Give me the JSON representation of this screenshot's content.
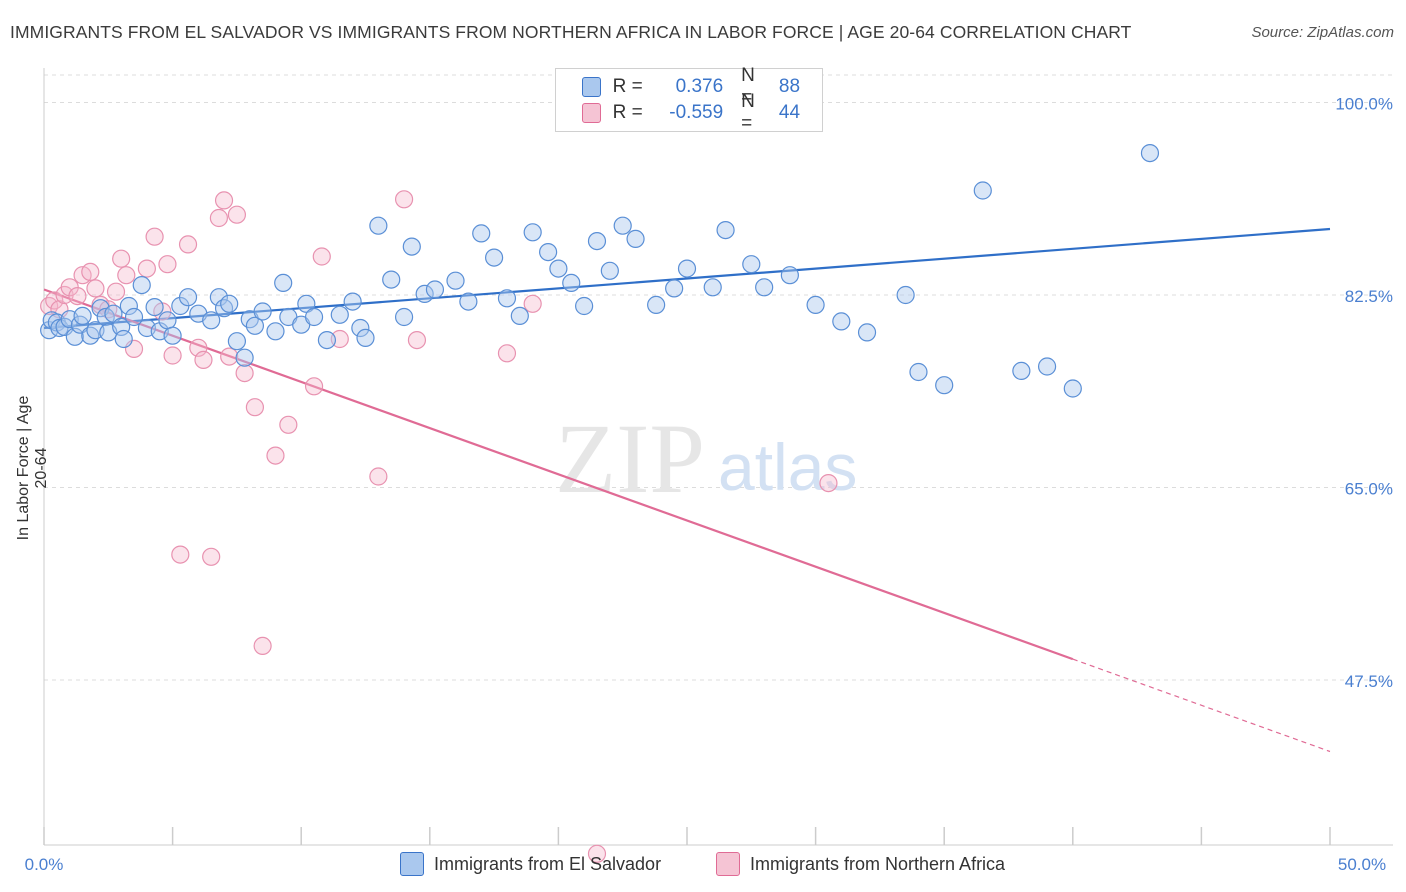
{
  "header": {
    "title": "IMMIGRANTS FROM EL SALVADOR VS IMMIGRANTS FROM NORTHERN AFRICA IN LABOR FORCE | AGE 20-64 CORRELATION CHART",
    "source": "Source: ZipAtlas.com"
  },
  "legend": {
    "rows": [
      {
        "r_label": "R =",
        "r_value": "0.376",
        "n_label": "N =",
        "n_value": "88"
      },
      {
        "r_label": "R =",
        "r_value": "-0.559",
        "n_label": "N =",
        "n_value": "44"
      }
    ]
  },
  "watermark": {
    "zip": "ZIP",
    "atlas": "atlas"
  },
  "colors": {
    "blue": "#3a74c9",
    "blue_fill": "#aac8ee",
    "pink": "#e06b95",
    "pink_fill": "#f5b8cc",
    "grid": "#dcdcdc",
    "tick_label": "#4a7fd0"
  },
  "chart_data": {
    "type": "scatter",
    "title": "IMMIGRANTS FROM EL SALVADOR VS IMMIGRANTS FROM NORTHERN AFRICA IN LABOR FORCE | AGE 20-64 CORRELATION CHART",
    "xlabel": "",
    "ylabel": "In Labor Force | Age 20-64",
    "xlim": [
      0,
      50
    ],
    "ylim": [
      32.5,
      102.5
    ],
    "x_tick_labels": [
      "0.0%",
      "50.0%"
    ],
    "y_ticks": [
      47.5,
      65.0,
      82.5,
      100.0
    ],
    "y_tick_labels": [
      "47.5%",
      "65.0%",
      "82.5%",
      "100.0%"
    ],
    "grid": true,
    "legend_position": "top-center",
    "series": [
      {
        "name": "Immigrants from El Salvador",
        "color": "#3a74c9",
        "trend": {
          "x": [
            0,
            50
          ],
          "y": [
            79.5,
            88.5
          ]
        },
        "points": [
          [
            0.2,
            79.3
          ],
          [
            0.3,
            80.2
          ],
          [
            0.5,
            80.0
          ],
          [
            0.6,
            79.5
          ],
          [
            0.8,
            79.6
          ],
          [
            1.0,
            80.3
          ],
          [
            1.2,
            78.7
          ],
          [
            1.4,
            79.8
          ],
          [
            1.5,
            80.6
          ],
          [
            1.8,
            78.8
          ],
          [
            2.0,
            79.3
          ],
          [
            2.2,
            81.3
          ],
          [
            2.4,
            80.5
          ],
          [
            2.5,
            79.1
          ],
          [
            2.7,
            80.8
          ],
          [
            3.0,
            79.6
          ],
          [
            3.1,
            78.5
          ],
          [
            3.3,
            81.5
          ],
          [
            3.5,
            80.5
          ],
          [
            3.8,
            83.4
          ],
          [
            4.0,
            79.5
          ],
          [
            4.3,
            81.4
          ],
          [
            4.5,
            79.2
          ],
          [
            4.8,
            80.2
          ],
          [
            5.0,
            78.8
          ],
          [
            5.3,
            81.5
          ],
          [
            5.6,
            82.3
          ],
          [
            6.0,
            80.8
          ],
          [
            6.5,
            80.2
          ],
          [
            6.8,
            82.3
          ],
          [
            7.0,
            81.3
          ],
          [
            7.2,
            81.7
          ],
          [
            7.5,
            78.3
          ],
          [
            7.8,
            76.8
          ],
          [
            8.0,
            80.3
          ],
          [
            8.2,
            79.7
          ],
          [
            8.5,
            81.0
          ],
          [
            9.0,
            79.2
          ],
          [
            9.3,
            83.6
          ],
          [
            9.5,
            80.5
          ],
          [
            10.0,
            79.8
          ],
          [
            10.2,
            81.7
          ],
          [
            10.5,
            80.5
          ],
          [
            11.0,
            78.4
          ],
          [
            11.5,
            80.7
          ],
          [
            12.0,
            81.9
          ],
          [
            12.3,
            79.5
          ],
          [
            12.5,
            78.6
          ],
          [
            13.0,
            88.8
          ],
          [
            13.5,
            83.9
          ],
          [
            14.0,
            80.5
          ],
          [
            14.3,
            86.9
          ],
          [
            14.8,
            82.6
          ],
          [
            15.2,
            83.0
          ],
          [
            16.0,
            83.8
          ],
          [
            16.5,
            81.9
          ],
          [
            17.0,
            88.1
          ],
          [
            17.5,
            85.9
          ],
          [
            18.0,
            82.2
          ],
          [
            18.5,
            80.6
          ],
          [
            19.0,
            88.2
          ],
          [
            19.6,
            86.4
          ],
          [
            20.0,
            84.9
          ],
          [
            20.5,
            83.6
          ],
          [
            21.0,
            81.5
          ],
          [
            21.5,
            87.4
          ],
          [
            22.0,
            84.7
          ],
          [
            22.5,
            88.8
          ],
          [
            23.0,
            87.6
          ],
          [
            23.8,
            81.6
          ],
          [
            24.5,
            83.1
          ],
          [
            25.0,
            84.9
          ],
          [
            26.0,
            83.2
          ],
          [
            26.5,
            88.4
          ],
          [
            27.5,
            85.3
          ],
          [
            28.0,
            83.2
          ],
          [
            29.0,
            84.3
          ],
          [
            30.0,
            81.6
          ],
          [
            31.0,
            80.1
          ],
          [
            32.0,
            79.1
          ],
          [
            33.5,
            82.5
          ],
          [
            34.0,
            75.5
          ],
          [
            35.0,
            74.3
          ],
          [
            36.5,
            92.0
          ],
          [
            38.0,
            75.6
          ],
          [
            39.0,
            76.0
          ],
          [
            40.0,
            74.0
          ],
          [
            43.0,
            95.4
          ]
        ]
      },
      {
        "name": "Immigrants from Northern Africa",
        "color": "#e06b95",
        "trend": {
          "x": [
            0,
            50
          ],
          "y": [
            83.0,
            41.0
          ]
        },
        "points": [
          [
            0.2,
            81.5
          ],
          [
            0.4,
            82.0
          ],
          [
            0.6,
            81.2
          ],
          [
            0.8,
            82.5
          ],
          [
            1.0,
            83.2
          ],
          [
            1.3,
            82.4
          ],
          [
            1.5,
            84.3
          ],
          [
            1.8,
            84.6
          ],
          [
            2.0,
            83.1
          ],
          [
            2.2,
            81.6
          ],
          [
            2.5,
            81.2
          ],
          [
            2.8,
            82.8
          ],
          [
            3.0,
            85.8
          ],
          [
            3.2,
            84.3
          ],
          [
            3.5,
            77.6
          ],
          [
            4.0,
            84.9
          ],
          [
            4.3,
            87.8
          ],
          [
            4.6,
            81.0
          ],
          [
            4.8,
            85.3
          ],
          [
            5.0,
            77.0
          ],
          [
            5.3,
            58.9
          ],
          [
            5.6,
            87.1
          ],
          [
            6.0,
            77.7
          ],
          [
            6.2,
            76.6
          ],
          [
            6.5,
            58.7
          ],
          [
            6.8,
            89.5
          ],
          [
            7.0,
            91.1
          ],
          [
            7.2,
            76.9
          ],
          [
            7.5,
            89.8
          ],
          [
            7.8,
            75.4
          ],
          [
            8.2,
            72.3
          ],
          [
            8.5,
            50.6
          ],
          [
            9.0,
            67.9
          ],
          [
            9.5,
            70.7
          ],
          [
            10.5,
            74.2
          ],
          [
            10.8,
            86.0
          ],
          [
            11.5,
            78.5
          ],
          [
            13.0,
            66.0
          ],
          [
            14.0,
            91.2
          ],
          [
            14.5,
            78.4
          ],
          [
            18.0,
            77.2
          ],
          [
            19.0,
            81.7
          ],
          [
            21.5,
            31.7
          ],
          [
            30.5,
            65.4
          ]
        ]
      }
    ]
  },
  "bottom_legend": {
    "s1": "Immigrants from El Salvador",
    "s2": "Immigrants from Northern Africa"
  }
}
